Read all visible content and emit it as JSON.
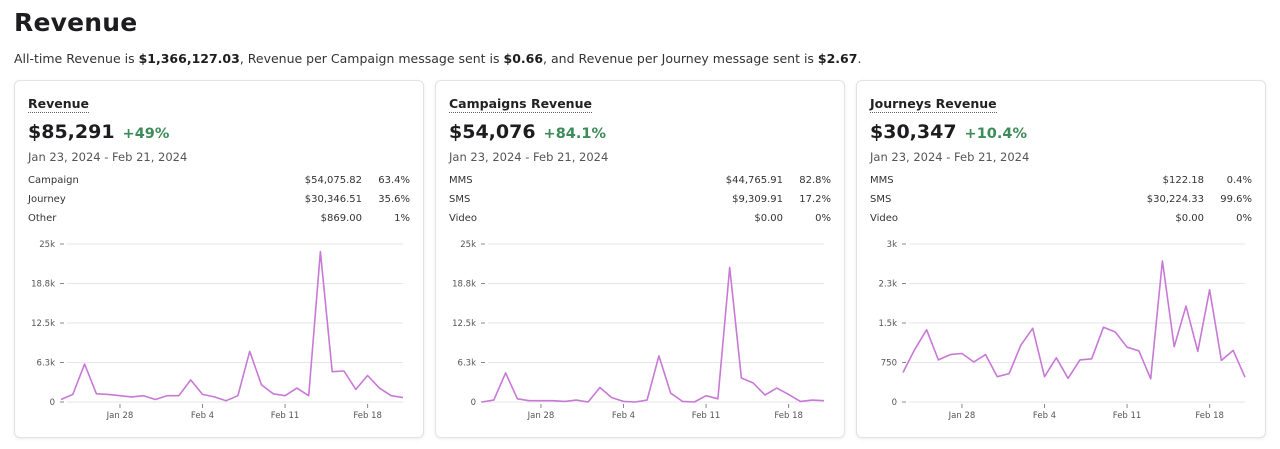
{
  "page": {
    "title": "Revenue",
    "summary": {
      "prefix": "All-time Revenue is ",
      "all_time": "$1,366,127.03",
      "mid1": ", Revenue per Campaign message sent is ",
      "per_campaign": "$0.66",
      "mid2": ", and Revenue per Journey message sent is ",
      "per_journey": "$2.67",
      "suffix": "."
    }
  },
  "cards": [
    {
      "title": "Revenue",
      "total": "$85,291",
      "delta": "+49%",
      "range": "Jan 23, 2024 - Feb 21, 2024",
      "breakdown": [
        {
          "label": "Campaign",
          "value": "$54,075.82",
          "pct": "63.4%"
        },
        {
          "label": "Journey",
          "value": "$30,346.51",
          "pct": "35.6%"
        },
        {
          "label": "Other",
          "value": "$869.00",
          "pct": "1%"
        }
      ],
      "chart_data": {
        "type": "line",
        "ylim": [
          0,
          25000
        ],
        "yticks": [
          0,
          6250,
          12500,
          18750,
          25000
        ],
        "ytick_labels": [
          "0",
          "6.3k",
          "12.5k",
          "18.8k",
          "25k"
        ],
        "xlim": [
          0,
          29
        ],
        "xticks": [
          5,
          12,
          19,
          26
        ],
        "xtick_labels": [
          "Jan 28",
          "Feb 4",
          "Feb 11",
          "Feb 18"
        ],
        "line_color": "#c879d6",
        "grid": true,
        "values": [
          400,
          1200,
          6000,
          1300,
          1200,
          1000,
          800,
          1000,
          400,
          1000,
          1000,
          3500,
          1200,
          800,
          200,
          1000,
          8000,
          2700,
          1300,
          1000,
          2200,
          1000,
          23800,
          4800,
          4900,
          2000,
          4200,
          2200,
          1000,
          700
        ]
      }
    },
    {
      "title": "Campaigns Revenue",
      "total": "$54,076",
      "delta": "+84.1%",
      "range": "Jan 23, 2024 - Feb 21, 2024",
      "breakdown": [
        {
          "label": "MMS",
          "value": "$44,765.91",
          "pct": "82.8%"
        },
        {
          "label": "SMS",
          "value": "$9,309.91",
          "pct": "17.2%"
        },
        {
          "label": "Video",
          "value": "$0.00",
          "pct": "0%"
        }
      ],
      "chart_data": {
        "type": "line",
        "ylim": [
          0,
          25000
        ],
        "yticks": [
          0,
          6250,
          12500,
          18750,
          25000
        ],
        "ytick_labels": [
          "0",
          "6.3k",
          "12.5k",
          "18.8k",
          "25k"
        ],
        "xlim": [
          0,
          29
        ],
        "xticks": [
          5,
          12,
          19,
          26
        ],
        "xtick_labels": [
          "Jan 28",
          "Feb 4",
          "Feb 11",
          "Feb 18"
        ],
        "line_color": "#c879d6",
        "grid": true,
        "values": [
          0,
          300,
          4600,
          500,
          200,
          200,
          200,
          100,
          300,
          0,
          2300,
          700,
          100,
          0,
          300,
          7300,
          1400,
          100,
          0,
          1000,
          500,
          21300,
          3800,
          3000,
          1100,
          2200,
          1200,
          100,
          300,
          200
        ]
      }
    },
    {
      "title": "Journeys Revenue",
      "total": "$30,347",
      "delta": "+10.4%",
      "range": "Jan 23, 2024 - Feb 21, 2024",
      "breakdown": [
        {
          "label": "MMS",
          "value": "$122.18",
          "pct": "0.4%"
        },
        {
          "label": "SMS",
          "value": "$30,224.33",
          "pct": "99.6%"
        },
        {
          "label": "Video",
          "value": "$0.00",
          "pct": "0%"
        }
      ],
      "chart_data": {
        "type": "line",
        "ylim": [
          0,
          3000
        ],
        "yticks": [
          0,
          750,
          1500,
          2250,
          3000
        ],
        "ytick_labels": [
          "0",
          "750",
          "1.5k",
          "2.3k",
          "3k"
        ],
        "xlim": [
          0,
          29
        ],
        "xticks": [
          5,
          12,
          19,
          26
        ],
        "xtick_labels": [
          "Jan 28",
          "Feb 4",
          "Feb 11",
          "Feb 18"
        ],
        "line_color": "#c879d6",
        "grid": true,
        "values": [
          560,
          1000,
          1370,
          800,
          900,
          920,
          760,
          900,
          480,
          540,
          1080,
          1400,
          480,
          840,
          450,
          800,
          820,
          1420,
          1330,
          1040,
          970,
          440,
          2680,
          1050,
          1820,
          960,
          2130,
          790,
          980,
          470
        ]
      }
    }
  ]
}
